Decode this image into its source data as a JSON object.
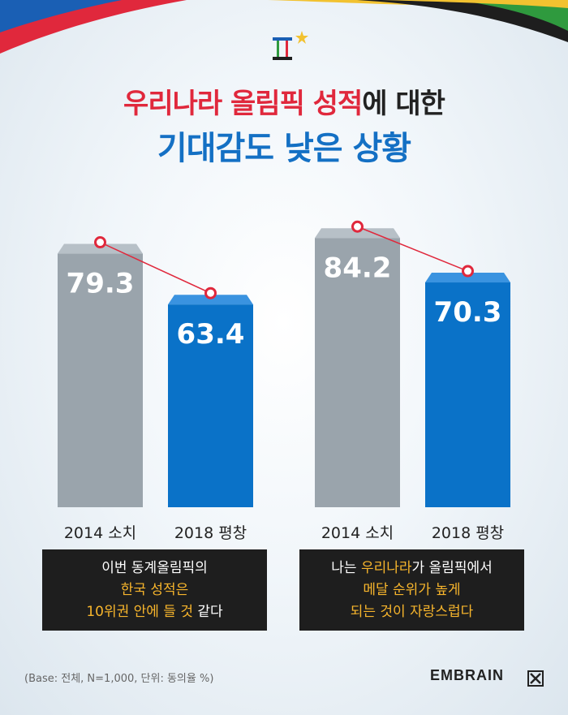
{
  "title": {
    "line1_red": "우리나라 올림픽 성적",
    "line1_rest": "에 대한",
    "line2": "기대감도 낮은 상황"
  },
  "colors": {
    "bar_2014": "#9aa4ac",
    "bar_2018": "#0a72c8",
    "connector": "#e0283c",
    "highlight": "#f7b52c"
  },
  "chart_data": [
    {
      "type": "bar",
      "categories": [
        "2014 소치",
        "2018 평창"
      ],
      "values": [
        79.3,
        63.4
      ],
      "ylim": [
        0,
        100
      ]
    },
    {
      "type": "bar",
      "categories": [
        "2014 소치",
        "2018 평창"
      ],
      "values": [
        84.2,
        70.3
      ],
      "ylim": [
        0,
        100
      ]
    }
  ],
  "captions": [
    {
      "lines": [
        [
          {
            "text": "이번 동계올림픽의",
            "hl": false
          }
        ],
        [
          {
            "text": "한국 성적은",
            "hl": true
          }
        ],
        [
          {
            "text": "10위권 안에 들 것",
            "hl": true
          },
          {
            "text": " 같다",
            "hl": false
          }
        ]
      ]
    },
    {
      "lines": [
        [
          {
            "text": "나는 ",
            "hl": false
          },
          {
            "text": "우리나라",
            "hl": true
          },
          {
            "text": "가 올림픽에서",
            "hl": false
          }
        ],
        [
          {
            "text": "메달 순위가 높게",
            "hl": true
          }
        ],
        [
          {
            "text": "되는 것이 자랑스럽다",
            "hl": true
          }
        ]
      ]
    }
  ],
  "footnote": "(Base: 전체, N=1,000, 단위: 동의율 %)",
  "brand": "EMBRAIN"
}
